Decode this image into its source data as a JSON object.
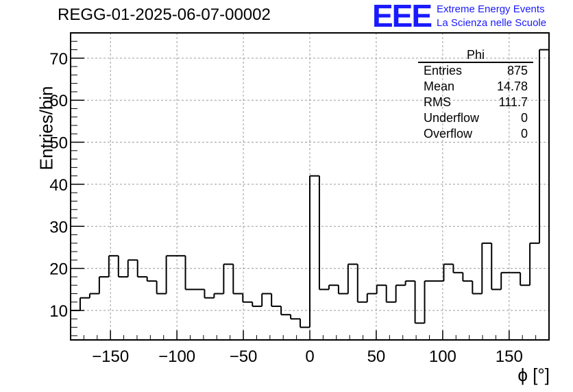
{
  "header": {
    "run_title": "REGG-01-2025-06-07-00002",
    "logo": "EEE",
    "logo_line1": "Extreme Energy Events",
    "logo_line2": "La Scienza nelle Scuole"
  },
  "stats_box": {
    "title": "Phi",
    "rows": [
      {
        "label": "Entries",
        "value": "875"
      },
      {
        "label": "Mean",
        "value": "14.78"
      },
      {
        "label": "RMS",
        "value": "111.7"
      },
      {
        "label": "Underflow",
        "value": "0"
      },
      {
        "label": "Overflow",
        "value": "0"
      }
    ]
  },
  "chart_data": {
    "type": "bar",
    "subtype": "step-histogram",
    "title": "REGG-01-2025-06-07-00002",
    "xlabel": "ϕ [°]",
    "ylabel": "Entries/bin",
    "xlim": [
      -180,
      180
    ],
    "ylim": [
      3,
      76
    ],
    "bin_width": 7.2,
    "x_ticks": [
      -150,
      -100,
      -50,
      0,
      50,
      100,
      150
    ],
    "x_tick_labels": [
      "−150",
      "−100",
      "−50",
      "0",
      "50",
      "100",
      "150"
    ],
    "y_ticks": [
      10,
      20,
      30,
      40,
      50,
      60,
      70
    ],
    "y_tick_labels": [
      "10",
      "20",
      "30",
      "40",
      "50",
      "60",
      "70"
    ],
    "grid": true,
    "colors": {
      "line": "#000000",
      "grid": "#9a9a9a"
    },
    "values": [
      10,
      13,
      14,
      18,
      23,
      18,
      22,
      18,
      17,
      14,
      23,
      23,
      15,
      15,
      13,
      14,
      21,
      14,
      12,
      11,
      14,
      11,
      9,
      8,
      6,
      42,
      15,
      16,
      14,
      21,
      12,
      14,
      16,
      12,
      16,
      17,
      7,
      17,
      17,
      21,
      19,
      17,
      14,
      26,
      15,
      19,
      19,
      16,
      26,
      72
    ]
  }
}
